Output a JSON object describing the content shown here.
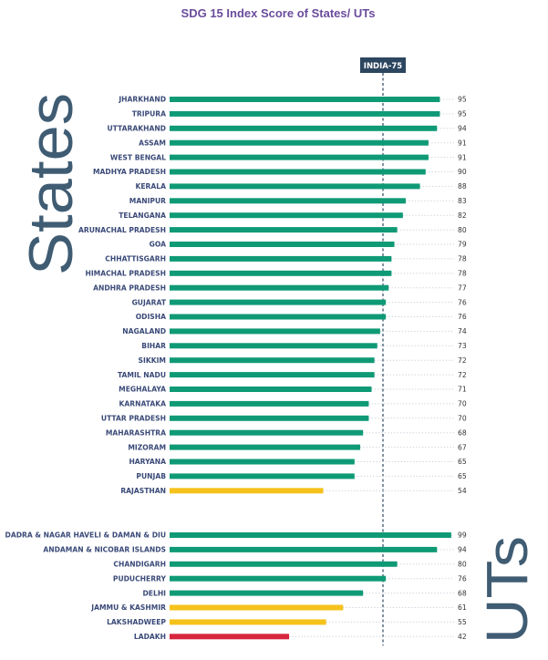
{
  "chart_data": {
    "type": "bar",
    "orientation": "horizontal",
    "title": "SDG 15 Index Score of States/ UTs",
    "reference_line": {
      "label": "INDIA-75",
      "value": 75
    },
    "xlim": [
      0,
      100
    ],
    "grid": false,
    "colors": {
      "green": "#0f9a76",
      "yellow": "#f5c21b",
      "red": "#d7263d"
    },
    "groups": [
      {
        "name": "States",
        "categories": [
          "JHARKHAND",
          "TRIPURA",
          "UTTARAKHAND",
          "ASSAM",
          "WEST BENGAL",
          "MADHYA PRADESH",
          "KERALA",
          "MANIPUR",
          "TELANGANA",
          "ARUNACHAL PRADESH",
          "GOA",
          "CHHATTISGARH",
          "HIMACHAL PRADESH",
          "ANDHRA PRADESH",
          "GUJARAT",
          "ODISHA",
          "NAGALAND",
          "BIHAR",
          "SIKKIM",
          "TAMIL NADU",
          "MEGHALAYA",
          "KARNATAKA",
          "UTTAR PRADESH",
          "MAHARASHTRA",
          "MIZORAM",
          "HARYANA",
          "PUNJAB",
          "RAJASTHAN"
        ],
        "values": [
          95,
          95,
          94,
          91,
          91,
          90,
          88,
          83,
          82,
          80,
          79,
          78,
          78,
          77,
          76,
          76,
          74,
          73,
          72,
          72,
          71,
          70,
          70,
          68,
          67,
          65,
          65,
          54
        ],
        "colors": [
          "green",
          "green",
          "green",
          "green",
          "green",
          "green",
          "green",
          "green",
          "green",
          "green",
          "green",
          "green",
          "green",
          "green",
          "green",
          "green",
          "green",
          "green",
          "green",
          "green",
          "green",
          "green",
          "green",
          "green",
          "green",
          "green",
          "green",
          "yellow"
        ]
      },
      {
        "name": "UTs",
        "categories": [
          "DADRA & NAGAR HAVELI & DAMAN & DIU",
          "ANDAMAN & NICOBAR ISLANDS",
          "CHANDIGARH",
          "PUDUCHERRY",
          "DELHI",
          "JAMMU & KASHMIR",
          "LAKSHADWEEP",
          "LADAKH"
        ],
        "values": [
          99,
          94,
          80,
          76,
          68,
          61,
          55,
          42
        ],
        "colors": [
          "green",
          "green",
          "green",
          "green",
          "green",
          "yellow",
          "yellow",
          "red"
        ]
      }
    ]
  }
}
